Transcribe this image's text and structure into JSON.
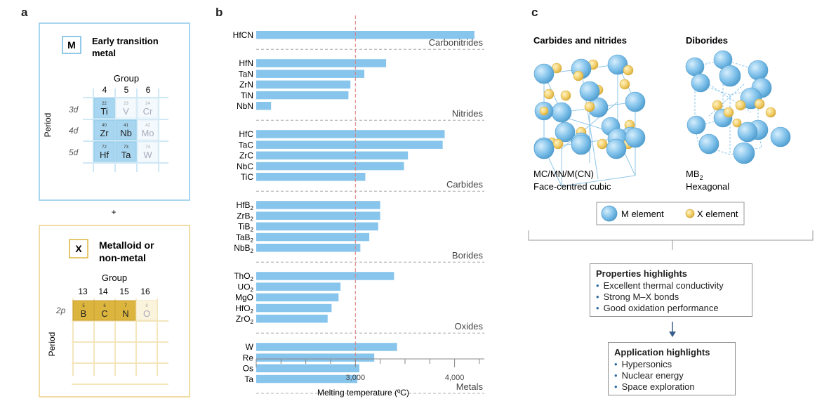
{
  "panels": {
    "a": "a",
    "b": "b",
    "c": "c"
  },
  "panel_a": {
    "m_box": {
      "badge": "M",
      "title_line1": "Early transition",
      "title_line2": "metal",
      "group_label": "Group",
      "groups": [
        "4",
        "5",
        "6"
      ],
      "period_label": "Period",
      "periods": [
        "3d",
        "4d",
        "5d"
      ],
      "cells": [
        [
          {
            "num": "22",
            "sym": "Ti",
            "active": true
          },
          {
            "num": "23",
            "sym": "V",
            "active": false
          },
          {
            "num": "24",
            "sym": "Cr",
            "active": false
          }
        ],
        [
          {
            "num": "40",
            "sym": "Zr",
            "active": true
          },
          {
            "num": "41",
            "sym": "Nb",
            "active": true
          },
          {
            "num": "42",
            "sym": "Mo",
            "active": false
          }
        ],
        [
          {
            "num": "72",
            "sym": "Hf",
            "active": true
          },
          {
            "num": "73",
            "sym": "Ta",
            "active": true
          },
          {
            "num": "74",
            "sym": "W",
            "active": false
          }
        ]
      ]
    },
    "plus": "+",
    "x_box": {
      "badge": "X",
      "title_line1": "Metalloid or",
      "title_line2": "non-metal",
      "group_label": "Group",
      "groups": [
        "13",
        "14",
        "15",
        "16"
      ],
      "period_label": "Period",
      "period": "2p",
      "cells": [
        {
          "num": "5",
          "sym": "B",
          "active": true
        },
        {
          "num": "6",
          "sym": "C",
          "active": true
        },
        {
          "num": "7",
          "sym": "N",
          "active": true
        },
        {
          "num": "8",
          "sym": "O",
          "active": false
        }
      ]
    }
  },
  "chart_data": {
    "type": "bar",
    "orientation": "horizontal",
    "xlabel": "Melting temperature (ºC)",
    "xlim": [
      2000,
      4300
    ],
    "xticks": [
      {
        "value": 3000,
        "label": "3,000"
      },
      {
        "value": 4000,
        "label": "4,000"
      }
    ],
    "reference_line": 3000,
    "groups": [
      {
        "name": "Carbonitrides",
        "bars": [
          {
            "label": "HfCN",
            "value": 4200
          }
        ]
      },
      {
        "name": "Nitrides",
        "bars": [
          {
            "label": "HfN",
            "value": 3310
          },
          {
            "label": "TaN",
            "value": 3090
          },
          {
            "label": "ZrN",
            "value": 2950
          },
          {
            "label": "TiN",
            "value": 2930
          },
          {
            "label": "NbN",
            "value": 2150
          }
        ]
      },
      {
        "name": "Carbides",
        "bars": [
          {
            "label": "HfC",
            "value": 3900
          },
          {
            "label": "TaC",
            "value": 3880
          },
          {
            "label": "ZrC",
            "value": 3530
          },
          {
            "label": "NbC",
            "value": 3490
          },
          {
            "label": "TiC",
            "value": 3100
          }
        ]
      },
      {
        "name": "Borides",
        "bars": [
          {
            "label": "HfB",
            "sub": "2",
            "value": 3250
          },
          {
            "label": "ZrB",
            "sub": "2",
            "value": 3250
          },
          {
            "label": "TiB",
            "sub": "2",
            "value": 3230
          },
          {
            "label": "TaB",
            "sub": "2",
            "value": 3140
          },
          {
            "label": "NbB",
            "sub": "2",
            "value": 3050
          }
        ]
      },
      {
        "name": "Oxides",
        "bars": [
          {
            "label": "ThO",
            "sub": "2",
            "value": 3390
          },
          {
            "label": "UO",
            "sub": "2",
            "value": 2850
          },
          {
            "label": "MgO",
            "value": 2830
          },
          {
            "label": "HfO",
            "sub": "2",
            "value": 2760
          },
          {
            "label": "ZrO",
            "sub": "2",
            "value": 2720
          }
        ]
      },
      {
        "name": "Metals",
        "bars": [
          {
            "label": "W",
            "value": 3420
          },
          {
            "label": "Re",
            "value": 3190
          },
          {
            "label": "Os",
            "value": 3040
          },
          {
            "label": "Ta",
            "value": 3020
          }
        ]
      }
    ]
  },
  "panel_c": {
    "structure1_title": "Carbides and nitrides",
    "structure2_title": "Diborides",
    "caption1_line1": "MC/MN/M(CN)",
    "caption1_line2": "Face-centred cubic",
    "caption2_line1": "MB",
    "caption2_sub": "2",
    "caption2_line2": "Hexagonal",
    "legend": {
      "m_label": "M element",
      "x_label": "X element"
    },
    "properties": {
      "title": "Properties highlights",
      "items": [
        "Excellent thermal conductivity",
        "Strong M–X bonds",
        "Good oxidation performance"
      ]
    },
    "applications": {
      "title": "Application highlights",
      "items": [
        "Hypersonics",
        "Nuclear energy",
        "Space exploration"
      ]
    },
    "colors": {
      "m_atom": "#7ec0ea",
      "x_atom": "#f2cf6b",
      "arrow": "#3a5f8a"
    }
  },
  "colors": {
    "m_border": "#8cc9e8",
    "m_cell": "#a8d6f0",
    "x_border": "#ecd185",
    "x_cell": "#dcb53f",
    "bar": "#87c5ec",
    "ref_line": "#e07a7a"
  }
}
